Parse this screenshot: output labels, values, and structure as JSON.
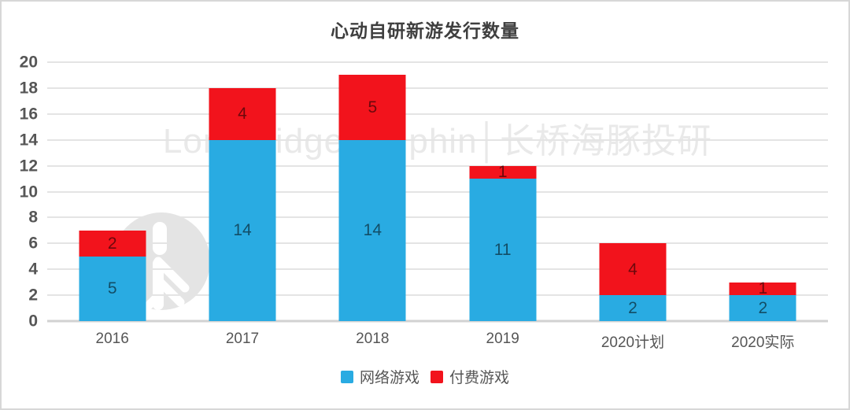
{
  "chart_data": {
    "type": "bar",
    "stacked": true,
    "title": "心动自研新游发行数量",
    "categories": [
      "2016",
      "2017",
      "2018",
      "2019",
      "2020计划",
      "2020实际"
    ],
    "series": [
      {
        "name": "网络游戏",
        "color": "#29abe2",
        "values": [
          5,
          14,
          14,
          11,
          2,
          2
        ]
      },
      {
        "name": "付费游戏",
        "color": "#f2131c",
        "values": [
          2,
          4,
          5,
          1,
          4,
          1
        ]
      }
    ],
    "totals": [
      7,
      18,
      19,
      12,
      6,
      3
    ],
    "ylim": [
      0,
      20
    ],
    "yticks": [
      0,
      2,
      4,
      6,
      8,
      10,
      12,
      14,
      16,
      18,
      20
    ],
    "xlabel": "",
    "ylabel": "",
    "grid": true,
    "legend_position": "bottom"
  },
  "watermark": {
    "text": "Longbridge Dolphin│长桥海豚投研",
    "logo": "dolphin-logo"
  },
  "colors": {
    "blue_series": "#29abe2",
    "red_series": "#f2131c",
    "grid": "#e4e4e4",
    "axis_text": "#565656",
    "title_text": "#3f3f3f",
    "frame_border": "#d7d7d7",
    "background": "#ffffff"
  }
}
